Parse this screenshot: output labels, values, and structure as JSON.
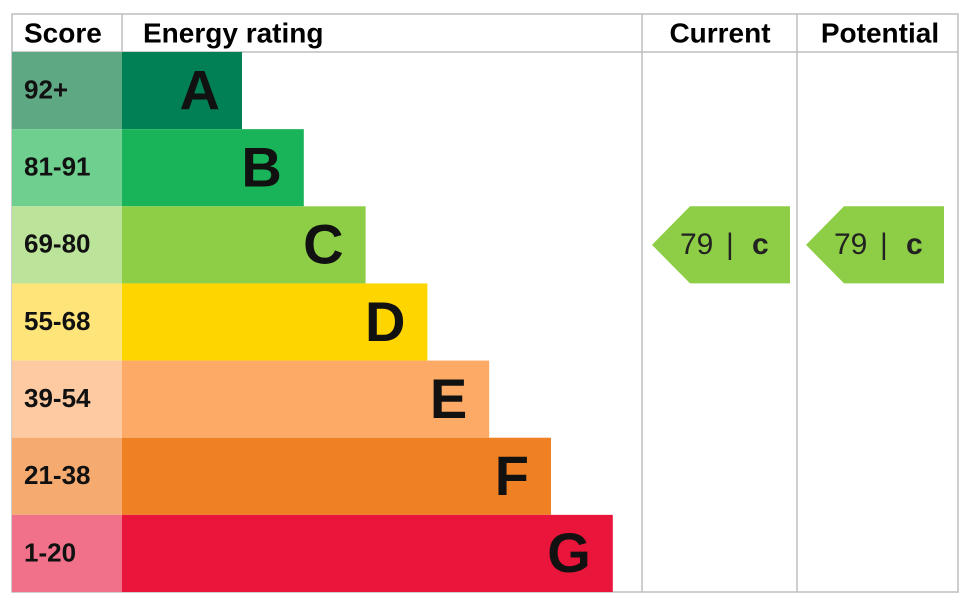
{
  "header": {
    "score": "Score",
    "rating": "Energy rating",
    "current": "Current",
    "potential": "Potential"
  },
  "bands": [
    {
      "score": "92+",
      "letter": "A",
      "color": "#008054",
      "tint": "#5fa884"
    },
    {
      "score": "81-91",
      "letter": "B",
      "color": "#19b459",
      "tint": "#6ecf8e"
    },
    {
      "score": "69-80",
      "letter": "C",
      "color": "#8dce46",
      "tint": "#bce39a"
    },
    {
      "score": "55-68",
      "letter": "D",
      "color": "#ffd500",
      "tint": "#ffe47a"
    },
    {
      "score": "39-54",
      "letter": "E",
      "color": "#fcaa65",
      "tint": "#fdcaa2"
    },
    {
      "score": "21-38",
      "letter": "F",
      "color": "#ef8023",
      "tint": "#f5ab70"
    },
    {
      "score": "1-20",
      "letter": "G",
      "color": "#e9153b",
      "tint": "#f07189"
    }
  ],
  "current": {
    "score": 79,
    "separator": "|",
    "rating": "c",
    "band": 2
  },
  "potential": {
    "score": 79,
    "separator": "|",
    "rating": "c",
    "band": 2
  }
}
